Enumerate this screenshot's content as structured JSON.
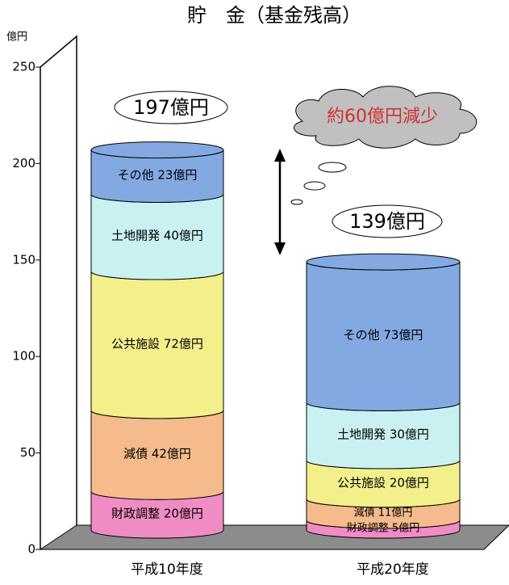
{
  "chart_data": {
    "type": "cylinder-stacked-bar",
    "title": "貯　金（基金残高）",
    "y_label": "億円",
    "categories": [
      "平成10年度",
      "平成20年度"
    ],
    "series": [
      {
        "name": "財政調整",
        "color": "#f08cc4",
        "values": [
          20,
          5
        ],
        "value_labels": [
          "財政調整 20億円",
          "財政調整 5億円"
        ]
      },
      {
        "name": "減債",
        "color": "#f5bb8c",
        "values": [
          42,
          11
        ],
        "value_labels": [
          "減債 42億円",
          "減債 11億円"
        ]
      },
      {
        "name": "公共施設",
        "color": "#f3f08c",
        "values": [
          72,
          20
        ],
        "value_labels": [
          "公共施設 72億円",
          "公共施設 20億円"
        ]
      },
      {
        "name": "土地開発",
        "color": "#c9f1f1",
        "values": [
          40,
          30
        ],
        "value_labels": [
          "土地開発 40億円",
          "土地開発 30億円"
        ]
      },
      {
        "name": "その他",
        "color": "#82a9e2",
        "values": [
          23,
          73
        ],
        "value_labels": [
          "その他 23億円",
          "その他 73億円"
        ]
      }
    ],
    "annotations": [
      "197億円",
      "139億円",
      "約60億円減少"
    ],
    "ylim": [
      0,
      250
    ],
    "yticks": [
      0,
      50,
      100,
      150,
      200,
      250
    ]
  }
}
